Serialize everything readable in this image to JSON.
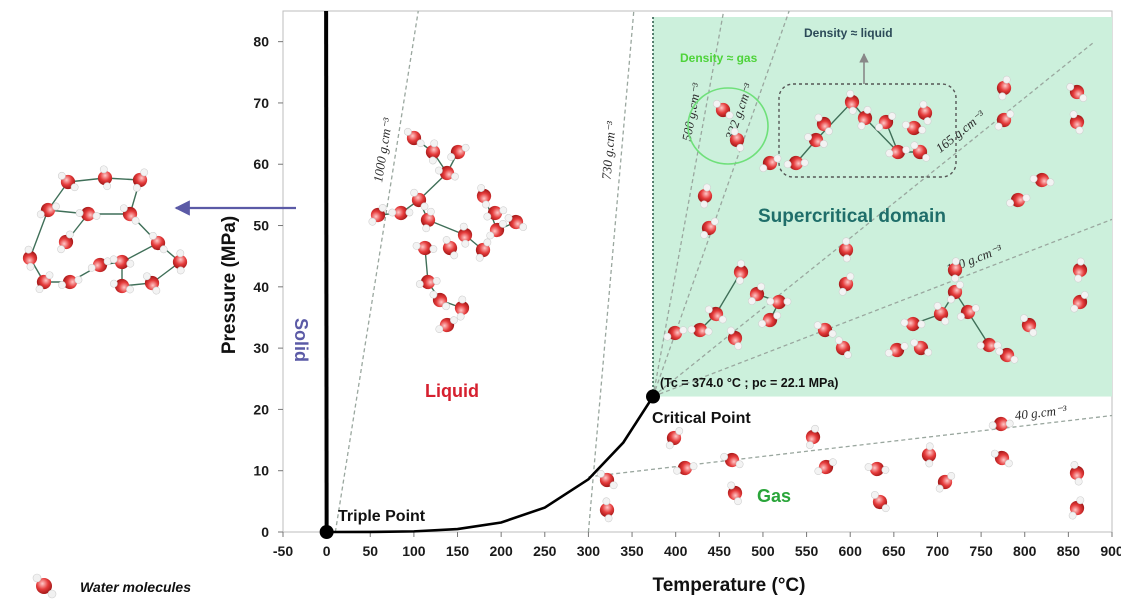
{
  "chart_data": {
    "type": "scatter",
    "xlabel": "Temperature (°C)",
    "ylabel": "Pressure (MPa)",
    "xlim": [
      -50,
      900
    ],
    "ylim": [
      0,
      85
    ],
    "xticks": [
      -50,
      0,
      50,
      100,
      150,
      200,
      250,
      300,
      350,
      400,
      450,
      500,
      550,
      600,
      650,
      700,
      750,
      800,
      850,
      900
    ],
    "yticks": [
      0,
      10,
      20,
      30,
      40,
      50,
      60,
      70,
      80
    ],
    "grid": false,
    "regions": {
      "solid": "Solid",
      "liquid": "Liquid",
      "gas": "Gas",
      "supercritical": "Supercritical domain"
    },
    "points": {
      "triple": {
        "label": "Triple Point",
        "x": 0.01,
        "y": 0.0006
      },
      "critical": {
        "label": "Critical Point",
        "x": 374.0,
        "y": 22.1,
        "coords": "(Tc = 374.0 °C ; pc = 22.1 MPa)"
      }
    },
    "phase_boundaries": [
      {
        "name": "solid-liquid",
        "x": [
          0,
          -0.6
        ],
        "y": [
          0,
          85
        ]
      },
      {
        "name": "liquid-gas",
        "x": [
          0,
          50,
          100,
          150,
          200,
          250,
          300,
          340,
          374
        ],
        "y": [
          0,
          0.01,
          0.1,
          0.48,
          1.55,
          3.98,
          8.6,
          14.6,
          22.1
        ]
      }
    ],
    "isochores": [
      {
        "label": "1000 g.cm⁻³",
        "x": [
          10,
          105
        ],
        "y": [
          0,
          85
        ]
      },
      {
        "label": "730 g.cm⁻³",
        "x": [
          300,
          352
        ],
        "y": [
          0,
          85
        ]
      },
      {
        "label": "500 g.cm⁻³",
        "x": [
          374,
          455
        ],
        "y": [
          22.1,
          85
        ]
      },
      {
        "label": "322 g.cm⁻³",
        "x": [
          374,
          530
        ],
        "y": [
          22.1,
          85
        ]
      },
      {
        "label": "165 g.cm⁻³",
        "x": [
          374,
          880
        ],
        "y": [
          22.1,
          80
        ]
      },
      {
        "label": "100 g.cm⁻³",
        "x": [
          374,
          900
        ],
        "y": [
          22.1,
          51
        ]
      },
      {
        "label": "40 g.cm⁻³",
        "x": [
          300,
          900
        ],
        "y": [
          9,
          19
        ]
      }
    ],
    "annotations": {
      "density_gas": "Density ≈ gas",
      "density_liquid": "Density ≈ liquid",
      "legend": "Water molecules"
    },
    "colors": {
      "supercritical_fill": "#ccf0dc",
      "molecule": "#e53b3b",
      "liquid_text": "#d6202f",
      "gas_text": "#2aa53a",
      "solid_text": "#5b5aa6",
      "supercritical_text": "#1f6e6a",
      "density_gas_text": "#4ed33a"
    }
  }
}
